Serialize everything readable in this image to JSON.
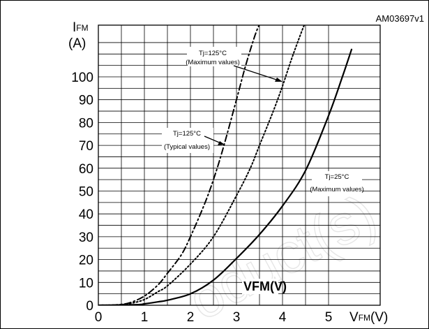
{
  "figure_code": "AM03697v1",
  "watermark": "oduct(s)",
  "inline_label": "VFM(V)",
  "y_axis": {
    "symbol": "I",
    "subscript": "FM",
    "unit": "(A)"
  },
  "x_axis": {
    "symbol": "V",
    "subscript": "FM",
    "unit": "(V)"
  },
  "annotations": [
    {
      "line1": "Tj=125°C",
      "line2": "(Maximum values)"
    },
    {
      "line1": "Tj=125°C",
      "line2": "(Typical values)"
    },
    {
      "line1": "Tj=25°C",
      "line2": "(Maximum values)"
    }
  ],
  "chart_data": {
    "type": "line",
    "xlabel": "VFM(V)",
    "ylabel": "IFM (A)",
    "xlim": [
      0,
      5.5
    ],
    "ylim": [
      0,
      120
    ],
    "grid": true,
    "x_ticks": [
      "0",
      "1",
      "2",
      "3",
      "4",
      "5"
    ],
    "y_ticks": [
      "0",
      "10",
      "20",
      "30",
      "40",
      "50",
      "60",
      "70",
      "80",
      "90",
      "100"
    ],
    "series": [
      {
        "name": "Tj=125°C (Typical values)",
        "style": "dashdot",
        "x": [
          0,
          0.3,
          0.5,
          0.7,
          1.0,
          1.3,
          1.5,
          1.8,
          2.0,
          2.3,
          2.5,
          2.7,
          3.0,
          3.2,
          3.4,
          3.5
        ],
        "y": [
          0,
          0.1,
          0.4,
          1.2,
          4,
          9,
          14,
          22,
          30,
          44,
          55,
          68,
          90,
          105,
          118,
          123
        ]
      },
      {
        "name": "Tj=125°C (Maximum values)",
        "style": "dotted",
        "x": [
          0,
          0.3,
          0.5,
          0.7,
          1.0,
          1.3,
          1.5,
          2.0,
          2.5,
          3.0,
          3.3,
          3.5,
          3.8,
          4.0,
          4.2,
          4.4,
          4.5
        ],
        "y": [
          0,
          0.1,
          0.3,
          0.8,
          2.5,
          6,
          8.5,
          18,
          30,
          48,
          60,
          70,
          85,
          96,
          108,
          119,
          124
        ]
      },
      {
        "name": "Tj=25°C (Maximum values)",
        "style": "solid",
        "x": [
          0,
          0.5,
          0.9,
          1.0,
          1.3,
          1.5,
          2.0,
          2.5,
          3.0,
          3.5,
          4.0,
          4.5,
          5.0,
          5.3,
          5.5
        ],
        "y": [
          0,
          0.1,
          0.3,
          0.6,
          1.5,
          2.2,
          5,
          11,
          20.5,
          31,
          43.5,
          59,
          83,
          100,
          112
        ]
      }
    ]
  }
}
